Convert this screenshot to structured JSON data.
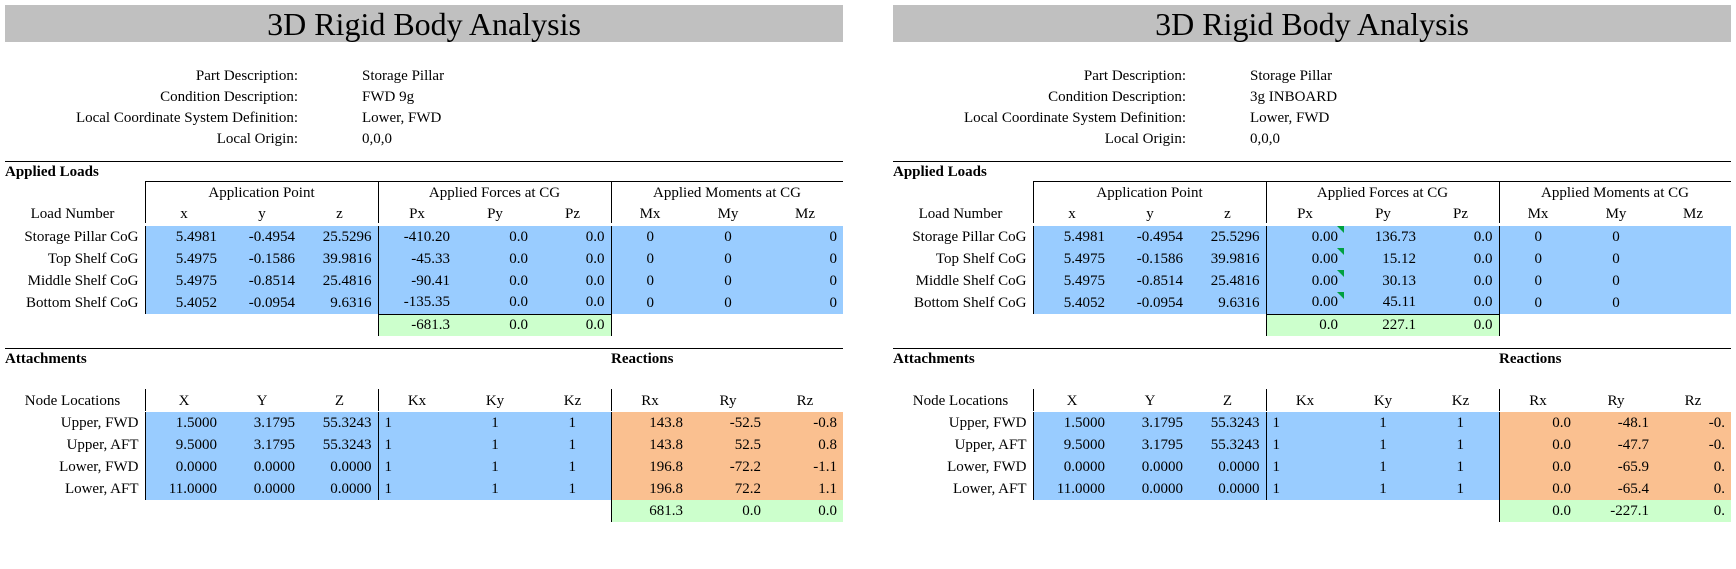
{
  "panels": [
    {
      "title": "3D Rigid Body Analysis",
      "info": [
        {
          "label": "Part Description:",
          "value": "Storage Pillar"
        },
        {
          "label": "Condition Description:",
          "value": "FWD 9g"
        },
        {
          "label": "Local Coordinate System Definition:",
          "value": "Lower, FWD"
        },
        {
          "label": "Local Origin:",
          "value": "0,0,0"
        }
      ],
      "applied": {
        "section_title": "Applied Loads",
        "group_headers": [
          "Application Point",
          "Applied Forces at CG",
          "Applied Moments at CG"
        ],
        "col_headers": [
          "Load Number",
          "x",
          "y",
          "z",
          "Px",
          "Py",
          "Pz",
          "Mx",
          "My",
          "Mz"
        ],
        "rows": [
          {
            "label": "Storage Pillar CoG",
            "x": "5.4981",
            "y": "-0.4954",
            "z": "25.5296",
            "px": "-410.20",
            "py": "0.0",
            "pz": "0.0",
            "mx": "0",
            "my": "0",
            "mz": "0"
          },
          {
            "label": "Top Shelf CoG",
            "x": "5.4975",
            "y": "-0.1586",
            "z": "39.9816",
            "px": "-45.33",
            "py": "0.0",
            "pz": "0.0",
            "mx": "0",
            "my": "0",
            "mz": "0"
          },
          {
            "label": "Middle Shelf CoG",
            "x": "5.4975",
            "y": "-0.8514",
            "z": "25.4816",
            "px": "-90.41",
            "py": "0.0",
            "pz": "0.0",
            "mx": "0",
            "my": "0",
            "mz": "0"
          },
          {
            "label": "Bottom Shelf CoG",
            "x": "5.4052",
            "y": "-0.0954",
            "z": "9.6316",
            "px": "-135.35",
            "py": "0.0",
            "pz": "0.0",
            "mx": "0",
            "my": "0",
            "mz": "0"
          }
        ],
        "totals": {
          "px": "-681.3",
          "py": "0.0",
          "pz": "0.0"
        }
      },
      "attach": {
        "section_title": "Attachments",
        "reactions_title": "Reactions",
        "col_headers": [
          "Node Locations",
          "X",
          "Y",
          "Z",
          "Kx",
          "Ky",
          "Kz",
          "Rx",
          "Ry",
          "Rz"
        ],
        "rows": [
          {
            "label": "Upper, FWD",
            "x": "1.5000",
            "y": "3.1795",
            "z": "55.3243",
            "kx": "1",
            "ky": "1",
            "kz": "1",
            "rx": "143.8",
            "ry": "-52.5",
            "rz": "-0.8"
          },
          {
            "label": "Upper, AFT",
            "x": "9.5000",
            "y": "3.1795",
            "z": "55.3243",
            "kx": "1",
            "ky": "1",
            "kz": "1",
            "rx": "143.8",
            "ry": "52.5",
            "rz": "0.8"
          },
          {
            "label": "Lower, FWD",
            "x": "0.0000",
            "y": "0.0000",
            "z": "0.0000",
            "kx": "1",
            "ky": "1",
            "kz": "1",
            "rx": "196.8",
            "ry": "-72.2",
            "rz": "-1.1"
          },
          {
            "label": "Lower, AFT",
            "x": "11.0000",
            "y": "0.0000",
            "z": "0.0000",
            "kx": "1",
            "ky": "1",
            "kz": "1",
            "rx": "196.8",
            "ry": "72.2",
            "rz": "1.1"
          }
        ],
        "totals": {
          "rx": "681.3",
          "ry": "0.0",
          "rz": "0.0"
        }
      }
    },
    {
      "title": "3D Rigid Body Analysis",
      "info": [
        {
          "label": "Part Description:",
          "value": "Storage Pillar"
        },
        {
          "label": "Condition Description:",
          "value": "3g INBOARD"
        },
        {
          "label": "Local Coordinate System Definition:",
          "value": "Lower, FWD"
        },
        {
          "label": "Local Origin:",
          "value": "0,0,0"
        }
      ],
      "applied": {
        "section_title": "Applied Loads",
        "group_headers": [
          "Application Point",
          "Applied Forces at CG",
          "Applied Moments at CG"
        ],
        "col_headers": [
          "Load Number",
          "x",
          "y",
          "z",
          "Px",
          "Py",
          "Pz",
          "Mx",
          "My",
          "Mz"
        ],
        "rows": [
          {
            "label": "Storage Pillar CoG",
            "x": "5.4981",
            "y": "-0.4954",
            "z": "25.5296",
            "px": "0.00",
            "py": "136.73",
            "pz": "0.0",
            "mx": "0",
            "my": "0",
            "mz": ""
          },
          {
            "label": "Top Shelf CoG",
            "x": "5.4975",
            "y": "-0.1586",
            "z": "39.9816",
            "px": "0.00",
            "py": "15.12",
            "pz": "0.0",
            "mx": "0",
            "my": "0",
            "mz": ""
          },
          {
            "label": "Middle Shelf CoG",
            "x": "5.4975",
            "y": "-0.8514",
            "z": "25.4816",
            "px": "0.00",
            "py": "30.13",
            "pz": "0.0",
            "mx": "0",
            "my": "0",
            "mz": ""
          },
          {
            "label": "Bottom Shelf CoG",
            "x": "5.4052",
            "y": "-0.0954",
            "z": "9.6316",
            "px": "0.00",
            "py": "45.11",
            "pz": "0.0",
            "mx": "0",
            "my": "0",
            "mz": ""
          }
        ],
        "totals": {
          "px": "0.0",
          "py": "227.1",
          "pz": "0.0"
        }
      },
      "attach": {
        "section_title": "Attachments",
        "reactions_title": "Reactions",
        "col_headers": [
          "Node Locations",
          "X",
          "Y",
          "Z",
          "Kx",
          "Ky",
          "Kz",
          "Rx",
          "Ry",
          "Rz"
        ],
        "rows": [
          {
            "label": "Upper, FWD",
            "x": "1.5000",
            "y": "3.1795",
            "z": "55.3243",
            "kx": "1",
            "ky": "1",
            "kz": "1",
            "rx": "0.0",
            "ry": "-48.1",
            "rz": "-0."
          },
          {
            "label": "Upper, AFT",
            "x": "9.5000",
            "y": "3.1795",
            "z": "55.3243",
            "kx": "1",
            "ky": "1",
            "kz": "1",
            "rx": "0.0",
            "ry": "-47.7",
            "rz": "-0."
          },
          {
            "label": "Lower, FWD",
            "x": "0.0000",
            "y": "0.0000",
            "z": "0.0000",
            "kx": "1",
            "ky": "1",
            "kz": "1",
            "rx": "0.0",
            "ry": "-65.9",
            "rz": "0."
          },
          {
            "label": "Lower, AFT",
            "x": "11.0000",
            "y": "0.0000",
            "z": "0.0000",
            "kx": "1",
            "ky": "1",
            "kz": "1",
            "rx": "0.0",
            "ry": "-65.4",
            "rz": "0."
          }
        ],
        "totals": {
          "rx": "0.0",
          "ry": "-227.1",
          "rz": "0."
        }
      }
    }
  ],
  "colors": {
    "input_blue": "#99ccff",
    "reaction_orange": "#fac090",
    "total_green": "#ccffcc",
    "title_gray": "#c0c0c0"
  }
}
